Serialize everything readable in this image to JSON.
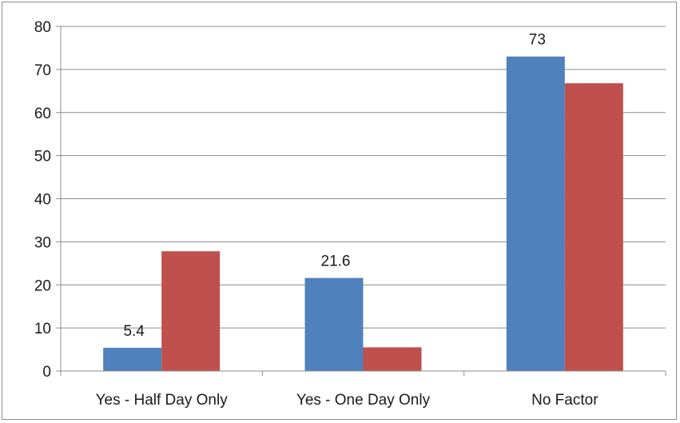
{
  "chart_data": {
    "type": "bar",
    "categories": [
      "Yes - Half Day Only",
      "Yes - One Day Only",
      "No Factor"
    ],
    "series": [
      {
        "values": [
          5.4,
          21.6,
          73
        ],
        "color": "#4f81bd",
        "data_labels": [
          "5.4",
          "21.6",
          "73"
        ]
      },
      {
        "values": [
          27.8,
          5.5,
          66.8
        ],
        "color": "#c0504d"
      }
    ],
    "ylim": [
      0,
      80
    ],
    "yticks": [
      0,
      10,
      20,
      30,
      40,
      50,
      60,
      70,
      80
    ],
    "grid": true,
    "legend": "none"
  }
}
